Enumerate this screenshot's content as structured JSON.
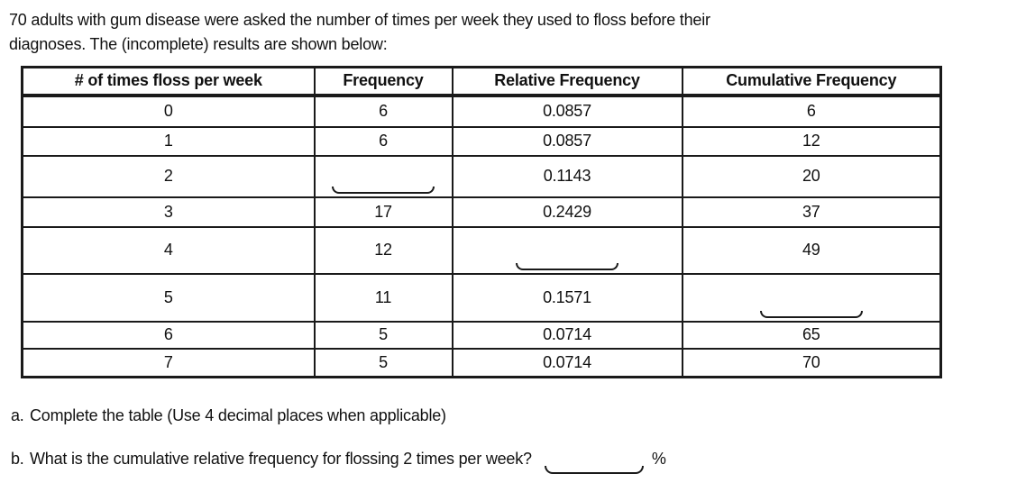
{
  "colors": {
    "text": "#111111",
    "border": "#1a1a1a",
    "background": "#ffffff"
  },
  "intro": {
    "line1": "70 adults with gum disease were asked the number of times per week they used to floss before their",
    "line2": "diagnoses. The (incomplete) results are shown below:"
  },
  "table": {
    "headers": [
      "# of times floss per week",
      "Frequency",
      "Relative Frequency",
      "Cumulative Frequency"
    ],
    "rows": [
      {
        "cells": [
          "0",
          "6",
          "0.0857",
          "6"
        ],
        "blank_col": null
      },
      {
        "cells": [
          "1",
          "6",
          "0.0857",
          "12"
        ],
        "blank_col": null
      },
      {
        "cells": [
          "2",
          "",
          "0.1143",
          "20"
        ],
        "blank_col": 1
      },
      {
        "cells": [
          "3",
          "17",
          "0.2429",
          "37"
        ],
        "blank_col": null
      },
      {
        "cells": [
          "4",
          "12",
          "",
          "49"
        ],
        "blank_col": 2
      },
      {
        "cells": [
          "5",
          "11",
          "0.1571",
          ""
        ],
        "blank_col": 3
      },
      {
        "cells": [
          "6",
          "5",
          "0.0714",
          "65"
        ],
        "blank_col": null
      },
      {
        "cells": [
          "7",
          "5",
          "0.0714",
          "70"
        ],
        "blank_col": null
      }
    ]
  },
  "questions": {
    "a_label": "a.",
    "a_text": "Complete the table (Use 4 decimal places when applicable)",
    "b_label": "b.",
    "b_text": "What is the cumulative relative frequency for flossing 2 times per week?",
    "b_suffix": "%"
  }
}
